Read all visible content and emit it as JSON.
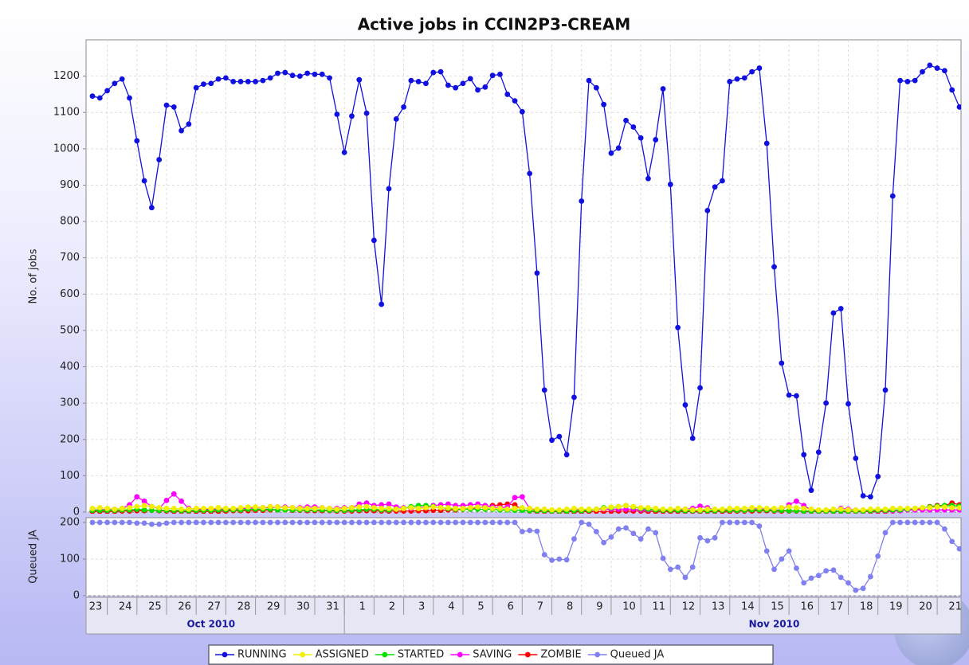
{
  "chart_data": {
    "type": "line",
    "title": "Active jobs in CCIN2P3-CREAM",
    "y_label": "No. of jobs",
    "categories": [
      "23",
      null,
      null,
      null,
      "24",
      null,
      null,
      null,
      "25",
      null,
      null,
      null,
      "26",
      null,
      null,
      null,
      "27",
      null,
      null,
      null,
      "28",
      null,
      null,
      null,
      "29",
      null,
      null,
      null,
      "30",
      null,
      null,
      null,
      "31",
      null,
      null,
      null,
      "1",
      null,
      null,
      null,
      "2",
      null,
      null,
      null,
      "3",
      null,
      null,
      null,
      "4",
      null,
      null,
      null,
      "5",
      null,
      null,
      null,
      "6",
      null,
      null,
      null,
      "7",
      null,
      null,
      null,
      "8",
      null,
      null,
      null,
      "9",
      null,
      null,
      null,
      "10",
      null,
      null,
      null,
      "11",
      null,
      null,
      null,
      "12",
      null,
      null,
      null,
      "13",
      null,
      null,
      null,
      "14",
      null,
      null,
      null,
      "15",
      null,
      null,
      null,
      "16",
      null,
      null,
      null,
      "17",
      null,
      null,
      null,
      "18",
      null,
      null,
      null,
      "19",
      null,
      null,
      null,
      "20",
      null,
      null,
      null,
      "21",
      null
    ],
    "month_labels": [
      "Oct 2010",
      "Nov 2010"
    ],
    "ylim": [
      0,
      1300
    ],
    "yticks": [
      0,
      100,
      200,
      300,
      400,
      500,
      600,
      700,
      800,
      900,
      1000,
      1100,
      1200
    ],
    "grid": true,
    "series": [
      {
        "name": "RUNNING",
        "color": "#1010e0",
        "values": [
          1145,
          1140,
          1160,
          1180,
          1192,
          1140,
          1022,
          912,
          838,
          970,
          1120,
          1115,
          1050,
          1068,
          1168,
          1178,
          1180,
          1192,
          1195,
          1185,
          1185,
          1185,
          1185,
          1188,
          1195,
          1208,
          1210,
          1202,
          1200,
          1208,
          1205,
          1205,
          1195,
          1095,
          990,
          1090,
          1190,
          1098,
          748,
          572,
          890,
          1082,
          1115,
          1188,
          1185,
          1180,
          1210,
          1212,
          1175,
          1168,
          1180,
          1193,
          1162,
          1170,
          1202,
          1205,
          1150,
          1132,
          1102,
          932,
          658,
          336,
          198,
          208,
          158,
          316,
          856,
          1188,
          1168,
          1122,
          988,
          1002,
          1078,
          1060,
          1030,
          918,
          1025,
          1165,
          902,
          508,
          295,
          203,
          342,
          830,
          895,
          912,
          1185,
          1192,
          1195,
          1212,
          1222,
          1015,
          675,
          410,
          322,
          320,
          158,
          60,
          165,
          300,
          548,
          560,
          298,
          148,
          45,
          42,
          98,
          336,
          870,
          1188,
          1185,
          1188,
          1212,
          1230,
          1222,
          1215,
          1162,
          1115
        ]
      },
      {
        "name": "ASSIGNED",
        "color": "#f0f000",
        "values": [
          10,
          12,
          10,
          8,
          10,
          12,
          15,
          18,
          15,
          12,
          10,
          10,
          8,
          8,
          10,
          10,
          10,
          12,
          10,
          10,
          12,
          14,
          14,
          12,
          15,
          14,
          12,
          12,
          10,
          10,
          10,
          12,
          10,
          8,
          10,
          12,
          14,
          15,
          12,
          10,
          10,
          8,
          10,
          12,
          10,
          12,
          14,
          12,
          12,
          10,
          10,
          12,
          14,
          12,
          10,
          10,
          8,
          10,
          12,
          10,
          8,
          8,
          6,
          6,
          8,
          10,
          8,
          8,
          8,
          10,
          14,
          15,
          18,
          15,
          12,
          12,
          10,
          8,
          8,
          10,
          8,
          6,
          6,
          8,
          8,
          8,
          10,
          10,
          10,
          12,
          12,
          10,
          10,
          12,
          14,
          12,
          10,
          8,
          6,
          6,
          8,
          8,
          6,
          6,
          6,
          8,
          8,
          8,
          10,
          10,
          10,
          10,
          12,
          12,
          14,
          14,
          12,
          12
        ]
      },
      {
        "name": "STARTED",
        "color": "#00e000",
        "values": [
          5,
          5,
          5,
          5,
          6,
          6,
          8,
          6,
          5,
          5,
          5,
          5,
          4,
          4,
          5,
          5,
          5,
          6,
          6,
          6,
          6,
          8,
          8,
          8,
          8,
          6,
          6,
          6,
          6,
          6,
          6,
          6,
          5,
          5,
          5,
          6,
          6,
          8,
          8,
          6,
          6,
          8,
          10,
          15,
          18,
          18,
          15,
          12,
          10,
          8,
          8,
          8,
          8,
          8,
          8,
          6,
          6,
          5,
          5,
          4,
          4,
          4,
          3,
          3,
          3,
          4,
          4,
          5,
          8,
          12,
          12,
          15,
          18,
          14,
          10,
          8,
          6,
          5,
          5,
          5,
          4,
          4,
          4,
          4,
          4,
          5,
          5,
          5,
          5,
          6,
          6,
          6,
          5,
          5,
          4,
          4,
          3,
          3,
          3,
          3,
          3,
          3,
          3,
          3,
          3,
          4,
          5,
          5,
          6,
          6,
          8,
          10,
          12,
          14,
          16,
          18,
          18,
          16
        ]
      },
      {
        "name": "SAVING",
        "color": "#ff00ff",
        "values": [
          6,
          6,
          8,
          8,
          10,
          20,
          42,
          30,
          15,
          10,
          32,
          50,
          30,
          10,
          8,
          8,
          8,
          8,
          8,
          8,
          10,
          10,
          12,
          12,
          12,
          14,
          14,
          12,
          12,
          14,
          14,
          12,
          10,
          10,
          12,
          12,
          22,
          25,
          18,
          20,
          22,
          14,
          12,
          10,
          12,
          14,
          18,
          20,
          22,
          18,
          18,
          20,
          22,
          18,
          14,
          12,
          14,
          40,
          42,
          10,
          6,
          4,
          4,
          4,
          4,
          6,
          6,
          6,
          8,
          8,
          8,
          8,
          8,
          8,
          6,
          6,
          6,
          6,
          6,
          6,
          8,
          10,
          16,
          12,
          6,
          6,
          6,
          6,
          6,
          8,
          10,
          8,
          6,
          6,
          20,
          30,
          18,
          6,
          4,
          4,
          6,
          10,
          8,
          6,
          4,
          4,
          4,
          4,
          4,
          4,
          6,
          6,
          6,
          6,
          6,
          6,
          6,
          6
        ]
      },
      {
        "name": "ZOMBIE",
        "color": "#ff0000",
        "values": [
          2,
          2,
          2,
          2,
          3,
          3,
          4,
          4,
          5,
          4,
          3,
          2,
          2,
          2,
          2,
          2,
          2,
          2,
          3,
          4,
          4,
          4,
          5,
          5,
          6,
          6,
          6,
          5,
          5,
          4,
          4,
          4,
          4,
          3,
          3,
          3,
          4,
          4,
          4,
          3,
          3,
          3,
          3,
          3,
          4,
          4,
          5,
          5,
          6,
          6,
          8,
          10,
          12,
          15,
          18,
          20,
          22,
          20,
          6,
          3,
          2,
          2,
          2,
          1,
          1,
          1,
          1,
          2,
          2,
          2,
          2,
          3,
          3,
          3,
          3,
          2,
          2,
          2,
          2,
          2,
          2,
          2,
          2,
          2,
          2,
          2,
          2,
          3,
          3,
          3,
          4,
          4,
          3,
          3,
          3,
          3,
          2,
          2,
          2,
          2,
          2,
          2,
          2,
          2,
          2,
          2,
          2,
          2,
          3,
          4,
          6,
          8,
          10,
          15,
          18,
          18,
          25,
          20
        ]
      }
    ],
    "subplot": {
      "y_label": "Queued JA",
      "ylim": [
        0,
        213
      ],
      "yticks": [
        0,
        100,
        200
      ],
      "series": [
        {
          "name": "Queued JA",
          "color": "#8080f0",
          "values": [
            200,
            200,
            200,
            200,
            200,
            200,
            198,
            198,
            195,
            195,
            198,
            200,
            200,
            200,
            200,
            200,
            200,
            200,
            200,
            200,
            200,
            200,
            200,
            200,
            200,
            200,
            200,
            200,
            200,
            200,
            200,
            200,
            200,
            200,
            200,
            200,
            200,
            200,
            200,
            200,
            200,
            200,
            200,
            200,
            200,
            200,
            200,
            200,
            200,
            200,
            200,
            200,
            200,
            200,
            200,
            200,
            200,
            200,
            175,
            178,
            176,
            112,
            97,
            100,
            98,
            155,
            200,
            195,
            175,
            145,
            160,
            182,
            185,
            170,
            155,
            182,
            172,
            102,
            72,
            78,
            50,
            78,
            158,
            150,
            158,
            200,
            200,
            200,
            200,
            200,
            190,
            122,
            72,
            100,
            122,
            75,
            35,
            48,
            55,
            68,
            70,
            50,
            35,
            15,
            20,
            52,
            108,
            172,
            200,
            200,
            200,
            200,
            200,
            200,
            200,
            182,
            148,
            128
          ]
        }
      ]
    }
  }
}
